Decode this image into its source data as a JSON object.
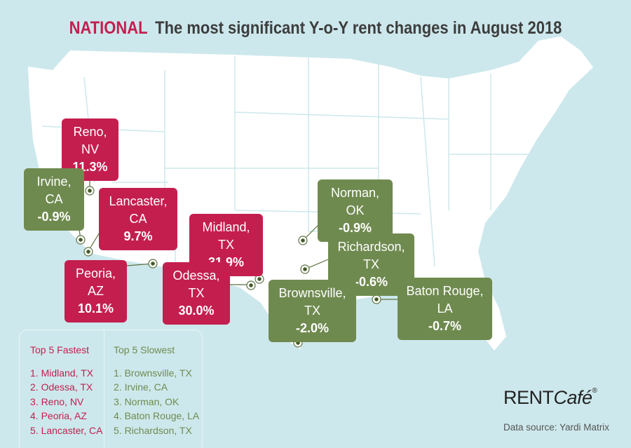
{
  "title": {
    "region": "NATIONAL",
    "text": "The most significant Y-o-Y rent changes in August 2018"
  },
  "colors": {
    "fastest": "#c41e4f",
    "slowest": "#6f8a4f",
    "background": "#cde8ec",
    "land": "#ffffff"
  },
  "callouts": [
    {
      "city": "Reno, NV",
      "change": "11.3%",
      "group": "fastest"
    },
    {
      "city": "Irvine, CA",
      "change": "-0.9%",
      "group": "slowest"
    },
    {
      "city": "Lancaster, CA",
      "change": "9.7%",
      "group": "fastest"
    },
    {
      "city": "Peoria, AZ",
      "change": "10.1%",
      "group": "fastest"
    },
    {
      "city": "Midland, TX",
      "change": "31.9%",
      "group": "fastest"
    },
    {
      "city": "Odessa, TX",
      "change": "30.0%",
      "group": "fastest"
    },
    {
      "city": "Norman, OK",
      "change": "-0.9%",
      "group": "slowest"
    },
    {
      "city": "Richardson, TX",
      "change": "-0.6%",
      "group": "slowest"
    },
    {
      "city": "Brownsville, TX",
      "change": "-2.0%",
      "group": "slowest"
    },
    {
      "city": "Baton Rouge, LA",
      "change": "-0.7%",
      "group": "slowest"
    }
  ],
  "legend": {
    "fastest": {
      "heading": "Top 5 Fastest",
      "items": [
        "1. Midland, TX",
        "2. Odessa, TX",
        "3. Reno, NV",
        "4. Peoria, AZ",
        "5. Lancaster, CA"
      ]
    },
    "slowest": {
      "heading": "Top 5 Slowest",
      "items": [
        "1. Brownsville, TX",
        "2. Irvine, CA",
        "3. Norman, OK",
        "4. Baton Rouge, LA",
        "5. Richardson, TX"
      ]
    }
  },
  "logo": {
    "rent": "RENT",
    "cafe": "Café",
    "mark": "®"
  },
  "source": "Data source:  Yardi Matrix"
}
